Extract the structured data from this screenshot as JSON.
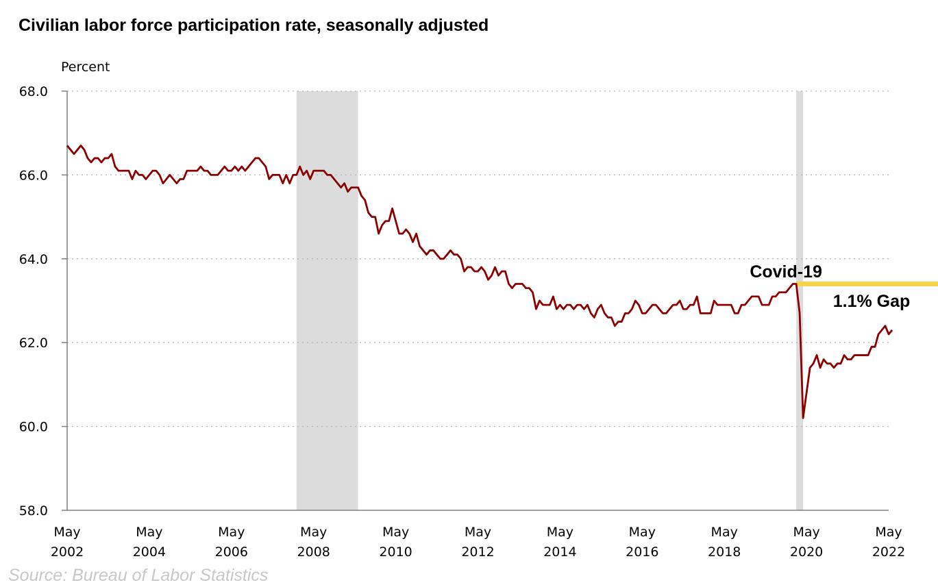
{
  "chart_data": {
    "type": "line",
    "title": "Civilian labor force participation rate, seasonally adjusted",
    "ylabel": "Percent",
    "source": "Source: Bureau of Labor Statistics",
    "ylim": [
      58.0,
      68.0
    ],
    "yticks": [
      "58.0",
      "60.0",
      "62.0",
      "64.0",
      "66.0",
      "68.0"
    ],
    "xticks": [
      {
        "line1": "May",
        "line2": "2002"
      },
      {
        "line1": "May",
        "line2": "2004"
      },
      {
        "line1": "May",
        "line2": "2006"
      },
      {
        "line1": "May",
        "line2": "2008"
      },
      {
        "line1": "May",
        "line2": "2010"
      },
      {
        "line1": "May",
        "line2": "2012"
      },
      {
        "line1": "May",
        "line2": "2014"
      },
      {
        "line1": "May",
        "line2": "2016"
      },
      {
        "line1": "May",
        "line2": "2018"
      },
      {
        "line1": "May",
        "line2": "2020"
      },
      {
        "line1": "May",
        "line2": "2022"
      }
    ],
    "grid": "horizontal-dotted",
    "recessions": [
      {
        "start": "2007-12",
        "end": "2009-06"
      },
      {
        "start": "2020-02",
        "end": "2020-04"
      }
    ],
    "annotations": [
      {
        "text": "Covid-19",
        "x": "2019-11",
        "y": 63.7
      },
      {
        "text": "1.1% Gap",
        "x": "2021-12",
        "y": 63.0
      }
    ],
    "reference_line": {
      "y": 63.4,
      "from": "2020-02",
      "color": "#f7d44c"
    },
    "series": [
      {
        "color": "#8b0000",
        "start": "2002-05",
        "values": [
          66.7,
          66.6,
          66.5,
          66.6,
          66.7,
          66.6,
          66.4,
          66.3,
          66.4,
          66.4,
          66.3,
          66.4,
          66.4,
          66.5,
          66.2,
          66.1,
          66.1,
          66.1,
          66.1,
          65.9,
          66.1,
          66.0,
          66.0,
          65.9,
          66.0,
          66.1,
          66.1,
          66.0,
          65.8,
          65.9,
          66.0,
          65.9,
          65.8,
          65.9,
          65.9,
          66.1,
          66.1,
          66.1,
          66.1,
          66.2,
          66.1,
          66.1,
          66.0,
          66.0,
          66.0,
          66.1,
          66.2,
          66.1,
          66.1,
          66.2,
          66.1,
          66.2,
          66.1,
          66.2,
          66.3,
          66.4,
          66.4,
          66.3,
          66.2,
          65.9,
          66.0,
          66.0,
          66.0,
          65.8,
          66.0,
          65.8,
          66.0,
          66.0,
          66.2,
          66.0,
          66.1,
          65.9,
          66.1,
          66.1,
          66.1,
          66.1,
          66.0,
          66.0,
          65.9,
          65.8,
          65.7,
          65.8,
          65.6,
          65.7,
          65.7,
          65.7,
          65.5,
          65.4,
          65.1,
          65.0,
          65.0,
          64.6,
          64.8,
          64.9,
          64.9,
          65.2,
          64.9,
          64.6,
          64.6,
          64.7,
          64.6,
          64.4,
          64.6,
          64.3,
          64.2,
          64.1,
          64.2,
          64.2,
          64.1,
          64.0,
          64.0,
          64.1,
          64.2,
          64.1,
          64.1,
          64.0,
          63.7,
          63.8,
          63.8,
          63.7,
          63.7,
          63.8,
          63.7,
          63.5,
          63.6,
          63.8,
          63.6,
          63.7,
          63.7,
          63.4,
          63.3,
          63.4,
          63.4,
          63.4,
          63.3,
          63.3,
          63.2,
          62.8,
          63.0,
          62.9,
          62.9,
          62.9,
          63.1,
          62.8,
          62.9,
          62.8,
          62.9,
          62.9,
          62.8,
          62.9,
          62.9,
          62.8,
          62.9,
          62.7,
          62.6,
          62.8,
          62.9,
          62.7,
          62.6,
          62.6,
          62.4,
          62.5,
          62.5,
          62.7,
          62.7,
          62.8,
          63.0,
          62.9,
          62.7,
          62.7,
          62.8,
          62.9,
          62.9,
          62.8,
          62.7,
          62.7,
          62.8,
          62.9,
          62.9,
          63.0,
          62.8,
          62.8,
          62.9,
          62.9,
          63.1,
          62.7,
          62.7,
          62.7,
          62.7,
          63.0,
          62.9,
          62.9,
          62.9,
          62.9,
          62.9,
          62.7,
          62.7,
          62.9,
          62.9,
          63.0,
          63.1,
          63.1,
          63.1,
          62.9,
          62.9,
          62.9,
          63.1,
          63.1,
          63.2,
          63.2,
          63.2,
          63.3,
          63.4,
          63.4,
          62.7,
          60.2,
          60.8,
          61.4,
          61.5,
          61.7,
          61.4,
          61.6,
          61.5,
          61.5,
          61.4,
          61.5,
          61.5,
          61.7,
          61.6,
          61.6,
          61.7,
          61.7,
          61.7,
          61.7,
          61.7,
          61.9,
          61.9,
          62.2,
          62.3,
          62.4,
          62.2,
          62.3
        ]
      }
    ]
  }
}
